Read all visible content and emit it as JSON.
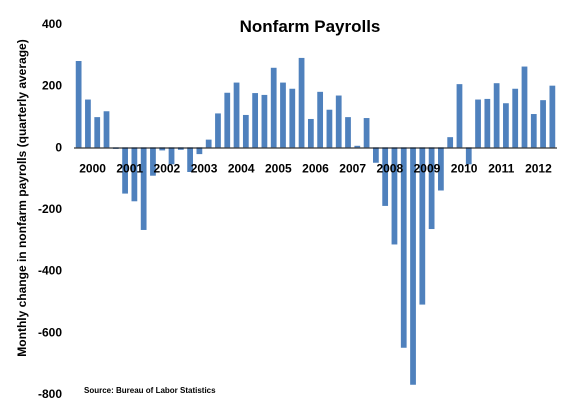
{
  "chart_data": {
    "type": "bar",
    "title": "Nonfarm Payrolls",
    "xlabel": "",
    "ylabel": "Monthly change in nonfarm payrolls (quarterly average)",
    "source": "Source: Bureau of Labor Statistics",
    "ylim": [
      -800,
      400
    ],
    "yticks": [
      400,
      200,
      0,
      -200,
      -400,
      -600,
      -800
    ],
    "year_labels": [
      "2000",
      "2001",
      "2002",
      "2003",
      "2004",
      "2005",
      "2006",
      "2007",
      "2008",
      "2009",
      "2010",
      "2011",
      "2012"
    ],
    "categories": [
      "2000 Q1",
      "2000 Q2",
      "2000 Q3",
      "2000 Q4",
      "2001 Q1",
      "2001 Q2",
      "2001 Q3",
      "2001 Q4",
      "2002 Q1",
      "2002 Q2",
      "2002 Q3",
      "2002 Q4",
      "2003 Q1",
      "2003 Q2",
      "2003 Q3",
      "2003 Q4",
      "2004 Q1",
      "2004 Q2",
      "2004 Q3",
      "2004 Q4",
      "2005 Q1",
      "2005 Q2",
      "2005 Q3",
      "2005 Q4",
      "2006 Q1",
      "2006 Q2",
      "2006 Q3",
      "2006 Q4",
      "2007 Q1",
      "2007 Q2",
      "2007 Q3",
      "2007 Q4",
      "2008 Q1",
      "2008 Q2",
      "2008 Q3",
      "2008 Q4",
      "2009 Q1",
      "2009 Q2",
      "2009 Q3",
      "2009 Q4",
      "2010 Q1",
      "2010 Q2",
      "2010 Q3",
      "2010 Q4",
      "2011 Q1",
      "2011 Q2",
      "2011 Q3",
      "2011 Q4",
      "2012 Q1",
      "2012 Q2",
      "2012 Q3",
      "2012 Q4"
    ],
    "values": [
      280,
      155,
      98,
      117,
      -5,
      -150,
      -175,
      -268,
      -92,
      -10,
      -55,
      -8,
      -80,
      -22,
      25,
      110,
      177,
      210,
      105,
      176,
      170,
      258,
      210,
      190,
      290,
      92,
      180,
      122,
      168,
      98,
      5,
      95,
      -50,
      -190,
      -315,
      -650,
      -770,
      -510,
      -265,
      -140,
      33,
      205,
      -55,
      155,
      157,
      208,
      143,
      190,
      262,
      108,
      153,
      200
    ],
    "bar_color": "#4f81bd",
    "grid": false,
    "legend": "none"
  }
}
